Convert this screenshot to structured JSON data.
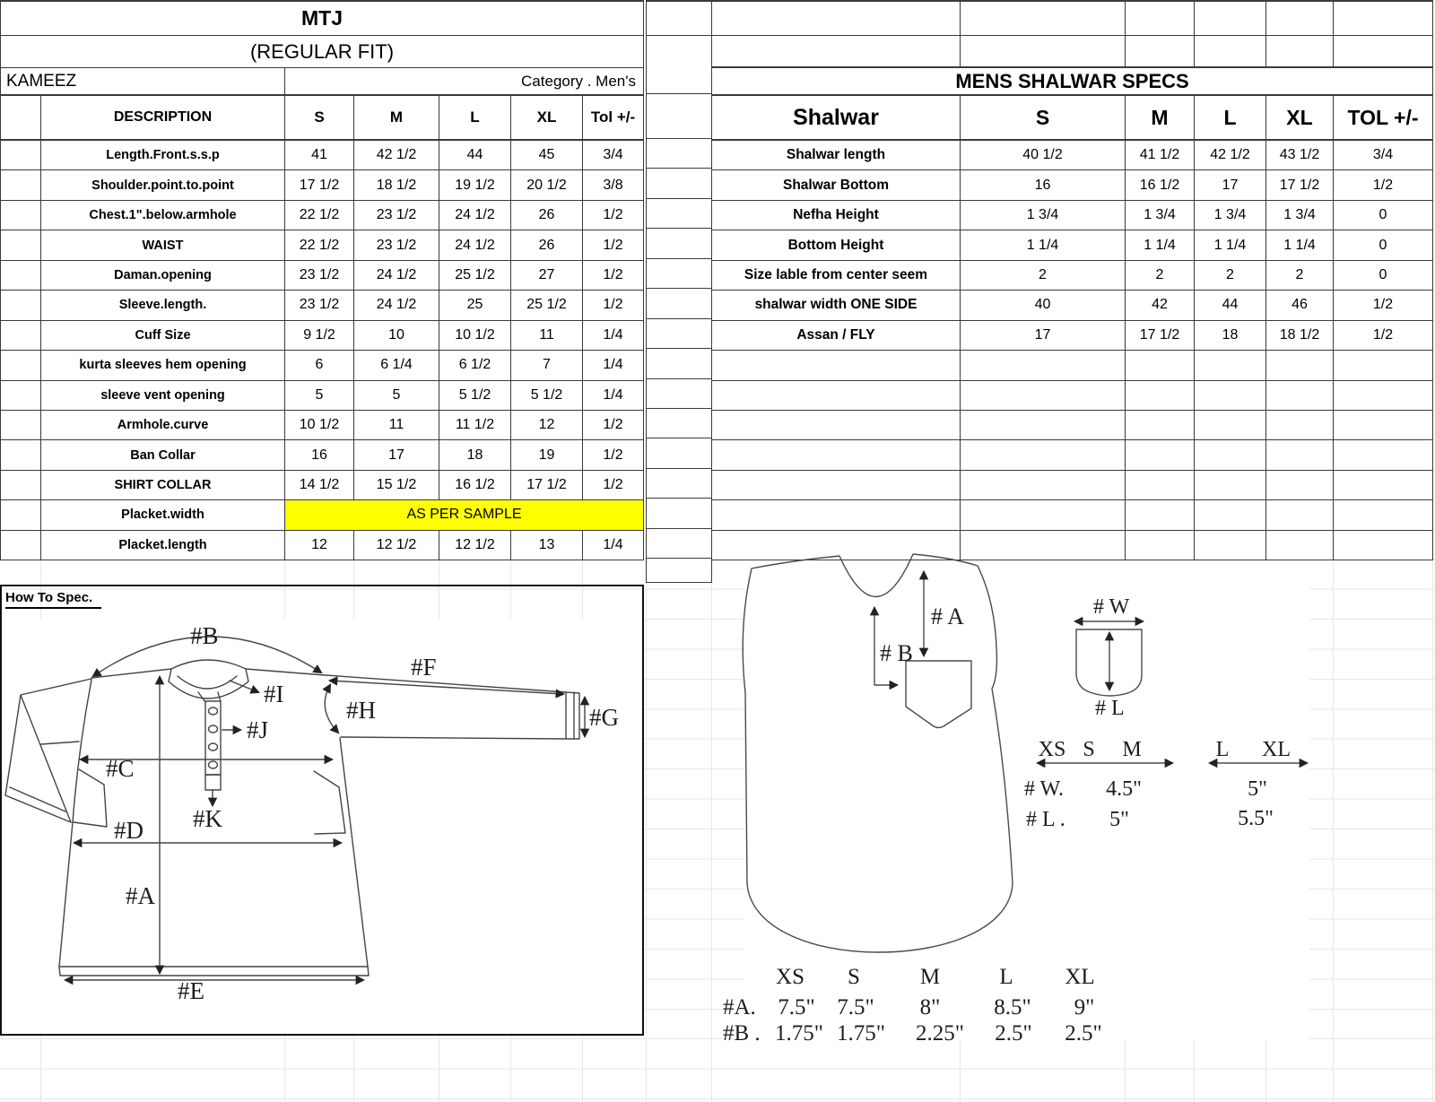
{
  "left_table": {
    "title": "MTJ",
    "subtitle": "(REGULAR FIT)",
    "garment": "KAMEEZ",
    "category": "Category . Men's",
    "columns": [
      "DESCRIPTION",
      "S",
      "M",
      "L",
      "XL",
      "Tol +/-"
    ],
    "rows": [
      {
        "desc": "Length.Front.s.s.p",
        "values": [
          "41",
          "42 1/2",
          "44",
          "45",
          "3/4"
        ]
      },
      {
        "desc": "Shoulder.point.to.point",
        "values": [
          "17 1/2",
          "18 1/2",
          "19 1/2",
          "20 1/2",
          "3/8"
        ]
      },
      {
        "desc": "Chest.1\".below.armhole",
        "values": [
          "22 1/2",
          "23 1/2",
          "24 1/2",
          "26",
          "1/2"
        ]
      },
      {
        "desc": "WAIST",
        "values": [
          "22 1/2",
          "23 1/2",
          "24 1/2",
          "26",
          "1/2"
        ]
      },
      {
        "desc": "Daman.opening",
        "values": [
          "23 1/2",
          "24 1/2",
          "25 1/2",
          "27",
          "1/2"
        ]
      },
      {
        "desc": "Sleeve.length.",
        "values": [
          "23 1/2",
          "24 1/2",
          "25",
          "25 1/2",
          "1/2"
        ]
      },
      {
        "desc": "Cuff Size",
        "values": [
          "9 1/2",
          "10",
          "10 1/2",
          "11",
          "1/4"
        ]
      },
      {
        "desc": "kurta sleeves hem opening",
        "values": [
          "6",
          "6 1/4",
          "6 1/2",
          "7",
          "1/4"
        ]
      },
      {
        "desc": "sleeve vent opening",
        "values": [
          "5",
          "5",
          "5 1/2",
          "5 1/2",
          "1/4"
        ]
      },
      {
        "desc": "Armhole.curve",
        "values": [
          "10 1/2",
          "11",
          "11 1/2",
          "12",
          "1/2"
        ]
      },
      {
        "desc": "Ban Collar",
        "values": [
          "16",
          "17",
          "18",
          "19",
          "1/2"
        ]
      },
      {
        "desc": "SHIRT COLLAR",
        "values": [
          "14 1/2",
          "15 1/2",
          "16 1/2",
          "17 1/2",
          "1/2"
        ]
      },
      {
        "desc": "Placket.width",
        "sample": true
      },
      {
        "desc": "Placket.length",
        "values": [
          "12",
          "12 1/2",
          "12 1/2",
          "13",
          "1/4"
        ]
      }
    ],
    "sample_note": "AS PER SAMPLE",
    "highlight_color": "#ffff00"
  },
  "right_table": {
    "title": "MENS SHALWAR SPECS",
    "columns": [
      "Shalwar",
      "S",
      "M",
      "L",
      "XL",
      "TOL +/-"
    ],
    "rows": [
      {
        "desc": "Shalwar length",
        "values": [
          "40 1/2",
          "41 1/2",
          "42 1/2",
          "43 1/2",
          "3/4"
        ]
      },
      {
        "desc": "Shalwar Bottom",
        "values": [
          "16",
          "16 1/2",
          "17",
          "17 1/2",
          "1/2"
        ]
      },
      {
        "desc": "Nefha Height",
        "values": [
          "1 3/4",
          "1 3/4",
          "1 3/4",
          "1 3/4",
          "0"
        ]
      },
      {
        "desc": "Bottom Height",
        "values": [
          "1 1/4",
          "1 1/4",
          "1 1/4",
          "1 1/4",
          "0"
        ]
      },
      {
        "desc": "Size lable from center seem",
        "values": [
          "2",
          "2",
          "2",
          "2",
          "0"
        ]
      },
      {
        "desc": "shalwar width ONE SIDE",
        "values": [
          "40",
          "42",
          "44",
          "46",
          "1/2"
        ]
      },
      {
        "desc": "Assan / FLY",
        "values": [
          "17",
          "17 1/2",
          "18",
          "18 1/2",
          "1/2"
        ]
      }
    ]
  },
  "how_to_spec": {
    "heading": "How To Spec.",
    "labels": {
      "a": "#A",
      "b": "#B",
      "c": "#C",
      "d": "#D",
      "e": "#E",
      "f": "#F",
      "g": "#G",
      "h": "#H",
      "i": "#I",
      "j": "#J",
      "k": "#K"
    }
  },
  "shalwar_diagram": {
    "labels": {
      "a": "# A",
      "b": "# B",
      "w": "# W",
      "l": "# L"
    },
    "pocket_spec": {
      "range1": [
        "XS",
        "S",
        "M"
      ],
      "range2": [
        "L",
        "XL"
      ],
      "w_label": "# W.",
      "w_range1": "4.5\"",
      "w_range2": "5\"",
      "l_label": "# L .",
      "l_range1": "5\"",
      "l_range2": "5.5\""
    },
    "size_chart": {
      "sizes": [
        "XS",
        "S",
        "M",
        "L",
        "XL"
      ],
      "a_label": "#A.",
      "a_values": [
        "7.5\"",
        "7.5\"",
        "8\"",
        "8.5\"",
        "9\""
      ],
      "b_label": "#B .",
      "b_values": [
        "1.75\"",
        "1.75\"",
        "2.25\"",
        "2.5\"",
        "2.5\""
      ]
    }
  }
}
